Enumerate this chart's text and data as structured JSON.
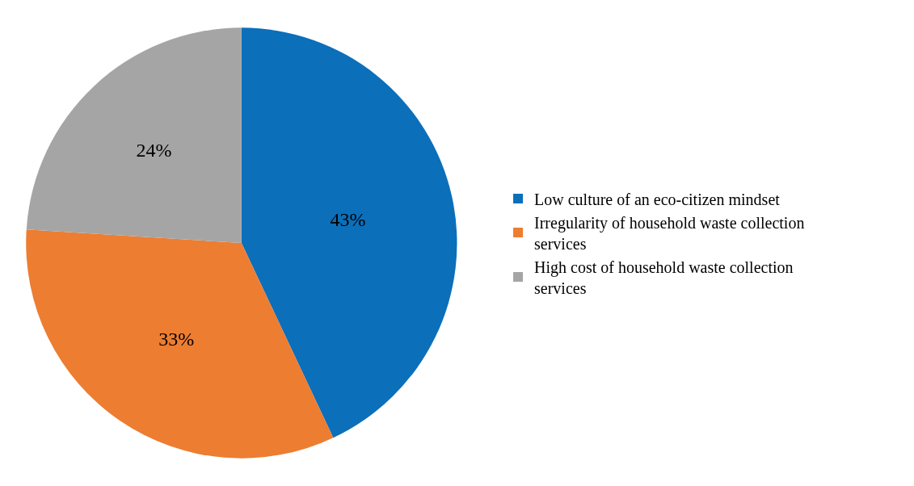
{
  "chart_data": {
    "type": "pie",
    "categories": [
      "Low culture of an eco-citizen mindset",
      "Irregularity of household waste collection services",
      "High cost of household waste collection services"
    ],
    "values": [
      43,
      33,
      24
    ],
    "value_labels": [
      "43%",
      "33%",
      "24%"
    ],
    "colors": [
      "#0b6fba",
      "#ed7d31",
      "#a5a5a5"
    ],
    "legend": "right"
  }
}
